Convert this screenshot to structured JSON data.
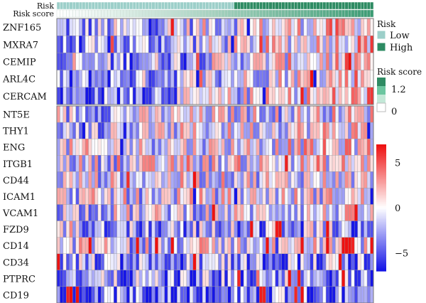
{
  "chart_data": {
    "type": "heatmap",
    "annotation_tracks": [
      "Risk",
      "Risk score"
    ],
    "rows": [
      "ZNF165",
      "MXRA7",
      "CEMIP",
      "ARL4C",
      "CERCAM",
      "NT5E",
      "THY1",
      "ENG",
      "ITGB1",
      "CD44",
      "ICAM1",
      "VCAM1",
      "FZD9",
      "CD14",
      "CD34",
      "PTPRC",
      "CD19"
    ],
    "row_groups": [
      [
        "ZNF165",
        "MXRA7",
        "CEMIP",
        "ARL4C",
        "CERCAM"
      ],
      [
        "NT5E",
        "THY1",
        "ENG",
        "ITGB1",
        "CD44",
        "ICAM1",
        "VCAM1",
        "FZD9",
        "CD14",
        "CD34",
        "PTPRC",
        "CD19"
      ]
    ],
    "n_samples": 100,
    "risk_split_index": 56,
    "risk_score_range": [
      0,
      1.2
    ],
    "value_range": [
      -7,
      7
    ],
    "row_bias": [
      -0.1,
      -0.15,
      -0.15,
      -0.15,
      -0.2,
      -0.1,
      -0.05,
      0,
      0,
      -0.05,
      -0.05,
      -0.1,
      -0.35,
      -0.05,
      -0.4,
      -0.45,
      -0.55
    ],
    "row_trend": [
      0.35,
      0.45,
      0.4,
      0.45,
      0.5,
      0.15,
      0.2,
      0.1,
      0.1,
      0.05,
      0.05,
      0.05,
      0,
      0.05,
      0,
      0,
      0
    ],
    "legend": {
      "risk_title": "Risk",
      "risk_items": [
        {
          "label": "Low",
          "color": "#9ccfc9"
        },
        {
          "label": "High",
          "color": "#2e8b63"
        }
      ],
      "score_title": "Risk score",
      "score_labels": [
        "1.2",
        "0"
      ],
      "score_colors": [
        "#2e8b63",
        "#6cc6a0",
        "#c3e8d7",
        "#ffffff"
      ],
      "color_ticks": [
        5,
        0,
        -5
      ]
    },
    "colors": {
      "high": "#ee1111",
      "mid": "#ffffff",
      "low": "#1515e6"
    }
  }
}
